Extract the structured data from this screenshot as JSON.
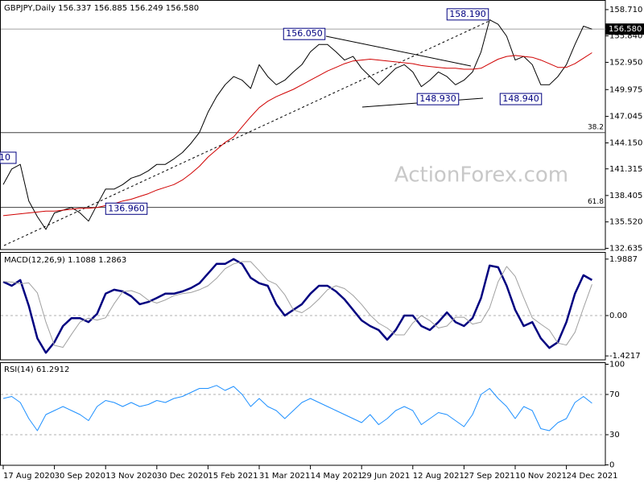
{
  "chart_data": [
    {
      "type": "line",
      "title": "GBPJPY,Daily  156.337 156.885 156.249 156.580",
      "categories": [
        "17 Aug 2020",
        null,
        null,
        null,
        null,
        null,
        "30 Sep 2020",
        null,
        null,
        null,
        null,
        null,
        "13 Nov 2020",
        null,
        null,
        null,
        null,
        null,
        "30 Dec 2020",
        null,
        null,
        null,
        null,
        null,
        "15 Feb 2021",
        null,
        null,
        null,
        null,
        null,
        "31 Mar 2021",
        null,
        null,
        null,
        null,
        null,
        "14 May 2021",
        null,
        null,
        null,
        null,
        null,
        "29 Jun 2021",
        null,
        null,
        null,
        null,
        null,
        "12 Aug 2021",
        null,
        null,
        null,
        null,
        null,
        "27 Sep 2021",
        null,
        null,
        null,
        null,
        null,
        "10 Nov 2021",
        null,
        null,
        null,
        null,
        null,
        "24 Dec 2021",
        null,
        null,
        null
      ],
      "series": [
        {
          "color": "#000000",
          "values": [
            139.6,
            141.3,
            141.8,
            137.8,
            136.1,
            134.7,
            136.5,
            136.8,
            137.1,
            136.5,
            135.6,
            137.4,
            139.1,
            139.1,
            139.6,
            140.3,
            140.6,
            141.1,
            141.8,
            141.8,
            142.4,
            143.1,
            144.1,
            145.3,
            147.5,
            149.2,
            150.5,
            151.4,
            151.0,
            150.1,
            152.7,
            151.4,
            150.5,
            151.0,
            151.9,
            152.7,
            154.1,
            154.9,
            154.9,
            154.1,
            153.2,
            153.6,
            152.3,
            151.4,
            150.5,
            151.4,
            152.3,
            152.7,
            151.9,
            150.3,
            151.0,
            151.9,
            151.4,
            150.5,
            151.0,
            151.9,
            154.1,
            157.6,
            157.1,
            155.8,
            153.2,
            153.6,
            152.7,
            150.5,
            150.5,
            151.4,
            152.7,
            154.9,
            156.9,
            156.58
          ]
        },
        {
          "color": "#d00000",
          "values": [
            136.2,
            136.3,
            136.4,
            136.5,
            136.6,
            136.7,
            136.7,
            136.8,
            136.9,
            137.0,
            137.0,
            137.1,
            137.3,
            137.5,
            137.8,
            138.0,
            138.3,
            138.6,
            139.0,
            139.3,
            139.6,
            140.1,
            140.8,
            141.6,
            142.6,
            143.4,
            144.2,
            144.8,
            145.9,
            147.0,
            148.0,
            148.7,
            149.2,
            149.6,
            150.0,
            150.5,
            151.0,
            151.5,
            152.0,
            152.4,
            152.8,
            153.1,
            153.2,
            153.3,
            153.2,
            153.1,
            153.0,
            152.9,
            152.8,
            152.6,
            152.5,
            152.4,
            152.3,
            152.3,
            152.2,
            152.2,
            152.3,
            152.8,
            153.3,
            153.6,
            153.7,
            153.6,
            153.5,
            153.2,
            152.8,
            152.4,
            152.4,
            152.8,
            153.4,
            154.0
          ]
        }
      ],
      "ylim": [
        132.5,
        159.76
      ],
      "yticks": [
        {
          "value": 158.71,
          "label": "158.710"
        },
        {
          "value": 155.84,
          "label": "155.840"
        },
        {
          "value": 152.95,
          "label": "152.950"
        },
        149.975,
        147.045,
        {
          "value": 144.15,
          "label": "144.150"
        },
        141.315,
        138.405,
        {
          "value": 135.52,
          "label": "135.520"
        },
        132.635
      ],
      "last_price": {
        "value": 156.58,
        "label": "156.580"
      },
      "levels": [
        {
          "value": 145.27,
          "label": "38.2"
        },
        {
          "value": 137.11,
          "label": "61.8"
        }
      ],
      "annotations": [
        {
          "value": 156.05,
          "label": "156.050"
        },
        {
          "value": 158.19,
          "label": "158.190"
        },
        {
          "value": 148.93,
          "label": "148.930"
        },
        {
          "value": 148.94,
          "label": "148.940"
        },
        {
          "value": 136.96,
          "label": "136.960"
        },
        {
          "label": "10"
        }
      ],
      "watermark": "ActionForex.com"
    },
    {
      "type": "line",
      "title": "MACD(12,26,9) 1.1088 1.2863",
      "series": [
        {
          "color": "#000080",
          "values": [
            1.19,
            1.05,
            1.25,
            0.34,
            -0.8,
            -1.31,
            -0.94,
            -0.37,
            -0.09,
            -0.09,
            -0.23,
            0.06,
            0.77,
            0.91,
            0.85,
            0.68,
            0.4,
            0.48,
            0.62,
            0.77,
            0.77,
            0.85,
            0.97,
            1.14,
            1.48,
            1.82,
            1.82,
            1.99,
            1.82,
            1.33,
            1.14,
            1.05,
            0.4,
            0.0,
            0.2,
            0.4,
            0.77,
            1.05,
            1.05,
            0.85,
            0.57,
            0.2,
            -0.17,
            -0.37,
            -0.51,
            -0.85,
            -0.51,
            0.0,
            0.0,
            -0.37,
            -0.51,
            -0.23,
            0.11,
            -0.23,
            -0.37,
            -0.09,
            0.62,
            1.76,
            1.7,
            1.05,
            0.2,
            -0.37,
            -0.23,
            -0.8,
            -1.14,
            -0.94,
            -0.23,
            0.77,
            1.42,
            1.25
          ]
        },
        {
          "color": "#a0a0a0",
          "values": [
            1.2,
            1.18,
            1.12,
            1.15,
            0.8,
            -0.23,
            -1.05,
            -1.12,
            -0.66,
            -0.23,
            -0.09,
            -0.16,
            -0.08,
            0.42,
            0.84,
            0.88,
            0.77,
            0.54,
            0.44,
            0.55,
            0.7,
            0.77,
            0.81,
            0.91,
            1.05,
            1.31,
            1.65,
            1.82,
            1.9,
            1.9,
            1.58,
            1.24,
            1.1,
            0.73,
            0.2,
            0.1,
            0.3,
            0.58,
            0.91,
            1.05,
            0.95,
            0.71,
            0.39,
            0.02,
            -0.27,
            -0.44,
            -0.68,
            -0.68,
            -0.26,
            0.0,
            -0.18,
            -0.44,
            -0.37,
            -0.06,
            -0.06,
            -0.3,
            -0.23,
            0.27,
            1.19,
            1.73,
            1.38,
            0.63,
            -0.08,
            -0.3,
            -0.51,
            -0.97,
            -1.04,
            -0.59,
            0.27,
            1.1
          ]
        }
      ],
      "ylim": [
        -1.56,
        2.24
      ],
      "yticks": [
        1.9887,
        {
          "value": 0,
          "label": "0.00"
        },
        -1.4217
      ],
      "zero_line": true
    },
    {
      "type": "line",
      "title": "RSI(14) 61.2912",
      "series": [
        {
          "color": "#1e90ff",
          "values": [
            66,
            68,
            62,
            46,
            34,
            50,
            54,
            58,
            54,
            50,
            44,
            58,
            64,
            62,
            58,
            62,
            58,
            60,
            64,
            62,
            66,
            68,
            72,
            76,
            76,
            79,
            74,
            78,
            70,
            58,
            66,
            58,
            54,
            46,
            54,
            62,
            66,
            62,
            58,
            54,
            50,
            46,
            42,
            50,
            40,
            46,
            54,
            58,
            54,
            40,
            46,
            52,
            50,
            44,
            38,
            50,
            70,
            76,
            66,
            58,
            46,
            58,
            54,
            36,
            34,
            42,
            46,
            62,
            68,
            61.3
          ]
        }
      ],
      "ylim": [
        0,
        100
      ],
      "yticks": [
        100,
        70,
        30,
        0
      ],
      "grid": true
    }
  ]
}
